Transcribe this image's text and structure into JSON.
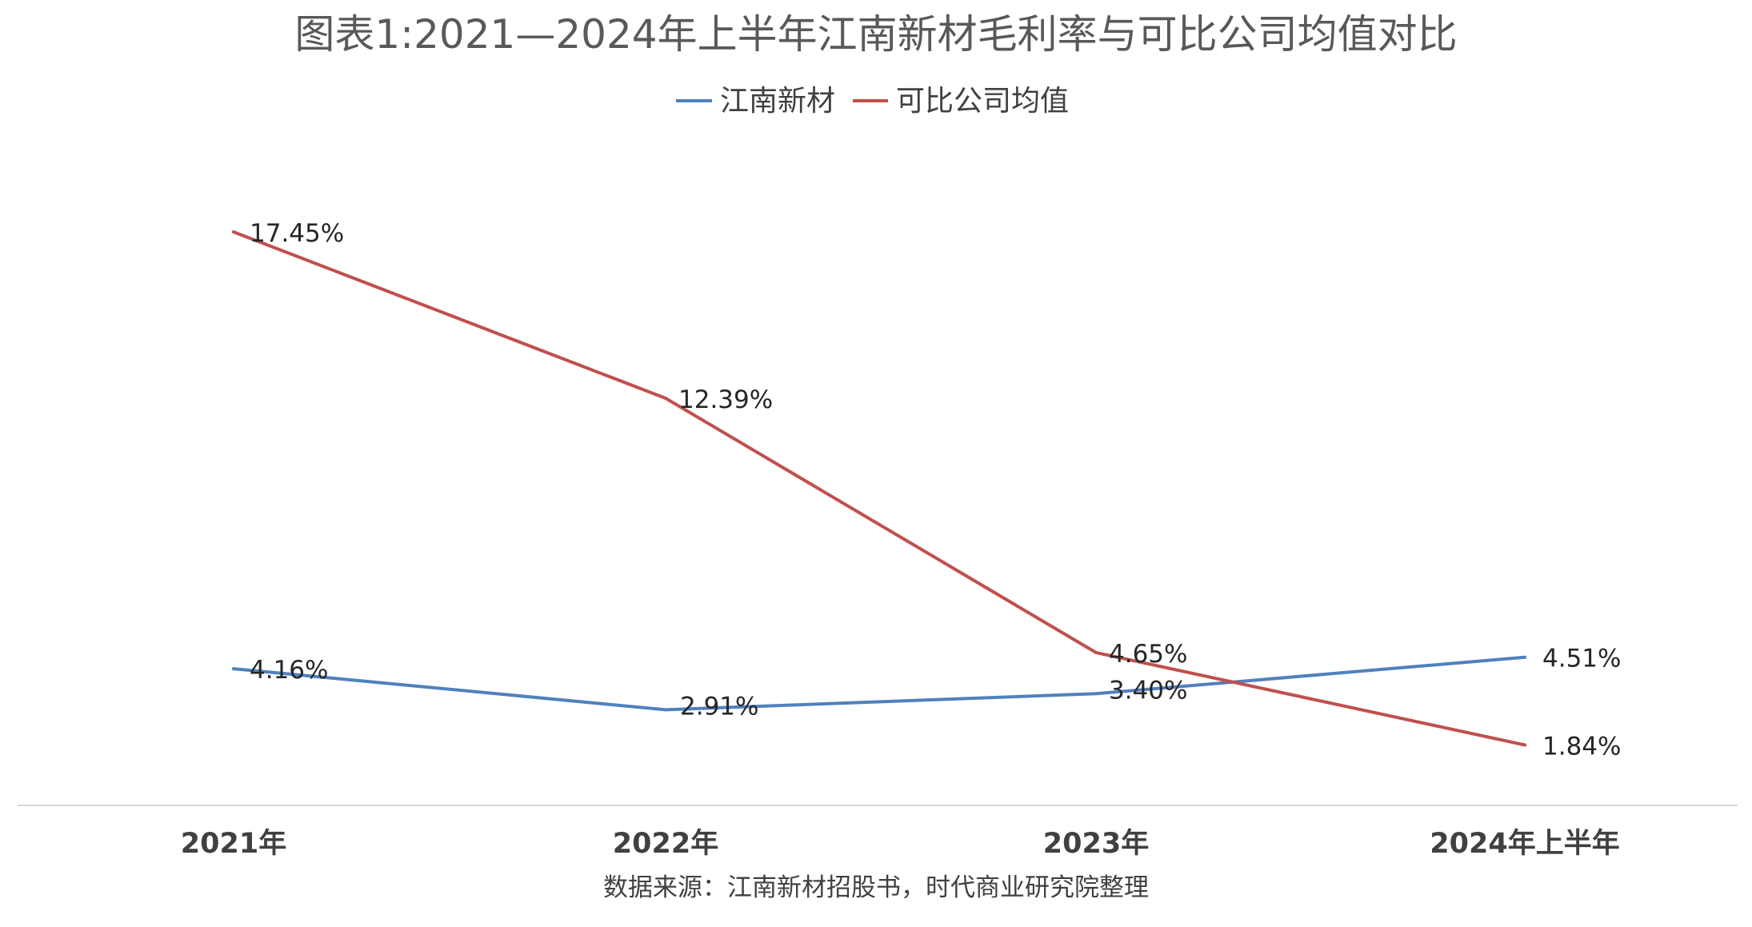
{
  "chart_data": {
    "type": "line",
    "title": "图表1:2021—2024年上半年江南新材毛利率与可比公司均值对比",
    "categories": [
      "2021年",
      "2022年",
      "2023年",
      "2024年上半年"
    ],
    "series": [
      {
        "name": "江南新材",
        "color": "#4f81bd",
        "values": [
          4.16,
          2.91,
          3.4,
          4.51
        ],
        "labels": [
          "4.16%",
          "2.91%",
          "3.40%",
          "4.51%"
        ]
      },
      {
        "name": "可比公司均值",
        "color": "#c0504d",
        "values": [
          17.45,
          12.39,
          4.65,
          1.84
        ],
        "labels": [
          "17.45%",
          "12.39%",
          "4.65%",
          "1.84%"
        ]
      }
    ],
    "ylim": [
      0,
      18
    ],
    "grid": false,
    "legend_position": "top-center",
    "xlabel": "",
    "ylabel": "",
    "source": "数据来源：江南新材招股书，时代商业研究院整理",
    "axis_color": "#d9d9d9"
  }
}
